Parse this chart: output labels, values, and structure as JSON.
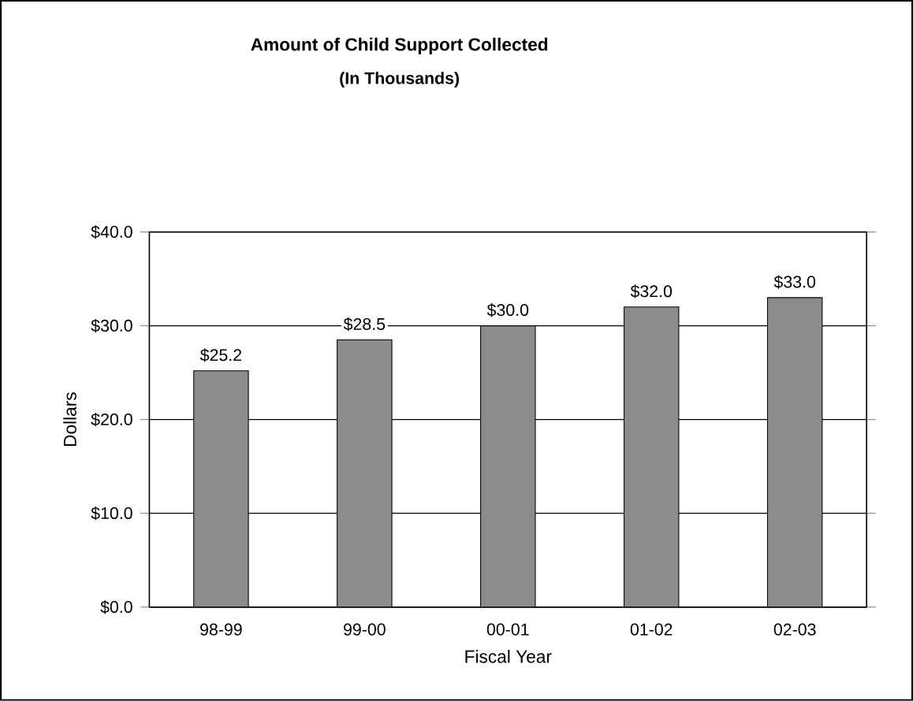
{
  "chart_data": {
    "type": "bar",
    "title": "Amount of Child Support Collected",
    "subtitle": "(In Thousands)",
    "xlabel": "Fiscal Year",
    "ylabel": "Dollars",
    "categories": [
      "98-99",
      "99-00",
      "00-01",
      "01-02",
      "02-03"
    ],
    "values": [
      25.2,
      28.5,
      30.0,
      32.0,
      33.0
    ],
    "value_labels": [
      "$25.2",
      "$28.5",
      "$30.0",
      "$32.0",
      "$33.0"
    ],
    "color": "#8c8c8c",
    "ylim": [
      0,
      40
    ],
    "yticks": [
      {
        "value": 0,
        "label": "$0.0"
      },
      {
        "value": 10,
        "label": "$10.0"
      },
      {
        "value": 20,
        "label": "$20.0"
      },
      {
        "value": 30,
        "label": "$30.0"
      },
      {
        "value": 40,
        "label": "$40.0"
      }
    ],
    "grid": "y"
  }
}
